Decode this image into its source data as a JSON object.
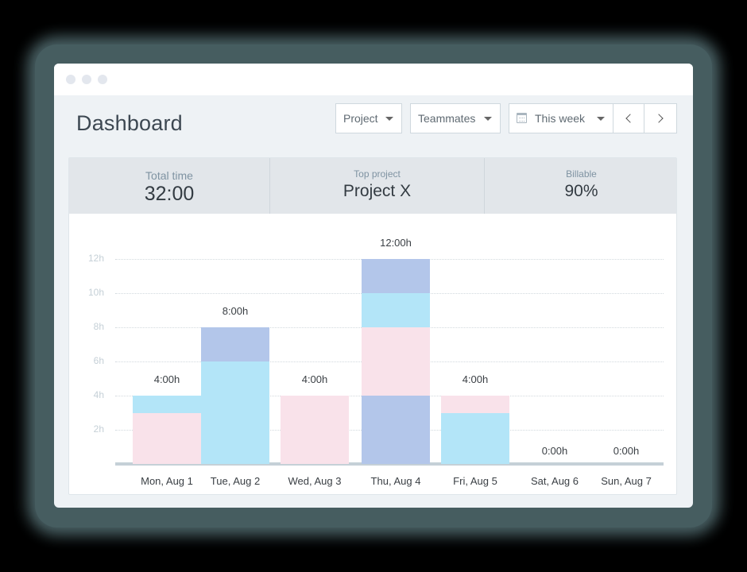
{
  "window": {
    "title_dots": 3
  },
  "header": {
    "title": "Dashboard"
  },
  "filters": {
    "project_label": "Project",
    "teammates_label": "Teammates",
    "range_label": "This week",
    "prev_icon": "chevron-left-icon",
    "next_icon": "chevron-right-icon",
    "calendar_icon": "calendar-icon"
  },
  "stats": {
    "total_time": {
      "label": "Total time",
      "value": "32:00"
    },
    "top_project": {
      "label": "Top project",
      "value": "Project X"
    },
    "billable": {
      "label": "Billable",
      "value": "90%"
    }
  },
  "colors": {
    "pink": "#f9e2ea",
    "light_blue": "#b3e5f8",
    "periwinkle": "#b3c6ea",
    "baseline": "#c5d0d7",
    "grid": "#d2d9de"
  },
  "chart_data": {
    "type": "bar",
    "stacked": true,
    "title": "",
    "xlabel": "",
    "ylabel": "",
    "ylim": [
      0,
      12
    ],
    "yticks": [
      "2h",
      "4h",
      "6h",
      "8h",
      "10h",
      "12h"
    ],
    "grid": true,
    "categories": [
      "Mon, Aug 1",
      "Tue, Aug 2",
      "Wed, Aug 3",
      "Thu, Aug 4",
      "Fri, Aug 5",
      "Sat, Aug 6",
      "Sun, Aug 7"
    ],
    "totals_labels": [
      "4:00h",
      "8:00h",
      "4:00h",
      "12:00h",
      "4:00h",
      "0:00h",
      "0:00h"
    ],
    "totals": [
      4,
      8,
      4,
      12,
      4,
      0,
      0
    ],
    "stacks": [
      [
        {
          "color": "pink",
          "hours": 3
        },
        {
          "color": "light_blue",
          "hours": 1
        }
      ],
      [
        {
          "color": "light_blue",
          "hours": 6
        },
        {
          "color": "periwinkle",
          "hours": 2
        }
      ],
      [
        {
          "color": "pink",
          "hours": 4
        }
      ],
      [
        {
          "color": "periwinkle",
          "hours": 4
        },
        {
          "color": "pink",
          "hours": 4
        },
        {
          "color": "light_blue",
          "hours": 2
        },
        {
          "color": "periwinkle",
          "hours": 2
        }
      ],
      [
        {
          "color": "light_blue",
          "hours": 3
        },
        {
          "color": "pink",
          "hours": 1
        }
      ],
      [],
      []
    ]
  }
}
